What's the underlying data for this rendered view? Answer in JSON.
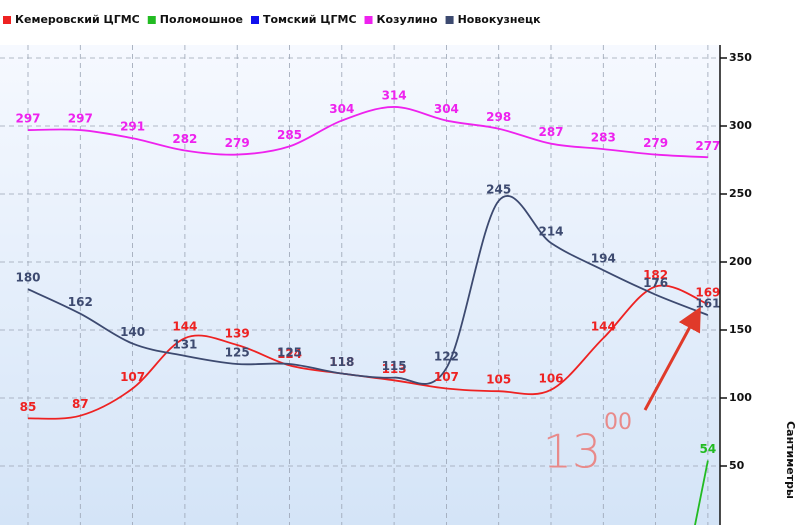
{
  "chart_data": {
    "type": "line",
    "categories": [
      null,
      null,
      null,
      null,
      null,
      null,
      null,
      null,
      null,
      null,
      null,
      null,
      null,
      null
    ],
    "series": [
      {
        "name": "Кемеровский ЦГМС",
        "color": "#ee2222",
        "values": [
          85,
          87,
          107,
          144,
          139,
          124,
          118,
          113,
          107,
          105,
          106,
          144,
          182,
          169
        ]
      },
      {
        "name": "Поломошное",
        "color": "#22bb22",
        "values": [
          null,
          null,
          null,
          null,
          null,
          null,
          null,
          null,
          null,
          null,
          null,
          null,
          null,
          54
        ]
      },
      {
        "name": "Томский ЦГМС",
        "color": "#1010ee",
        "values": [
          null,
          null,
          null,
          null,
          null,
          null,
          null,
          null,
          null,
          null,
          null,
          null,
          null,
          null
        ]
      },
      {
        "name": "Козулино",
        "color": "#ee22ee",
        "values": [
          297,
          297,
          291,
          282,
          279,
          285,
          304,
          314,
          304,
          298,
          287,
          283,
          279,
          277
        ]
      },
      {
        "name": "Новокузнецк",
        "color": "#3d4a70",
        "values": [
          180,
          162,
          140,
          131,
          125,
          125,
          118,
          115,
          122,
          245,
          214,
          194,
          176,
          161
        ]
      }
    ],
    "ylim": [
      0,
      350
    ],
    "yticks": [
      50,
      100,
      150,
      200,
      250,
      300,
      350
    ],
    "y_label": "Сантиметры",
    "grid": true,
    "annotations": [
      "13",
      "00"
    ]
  }
}
